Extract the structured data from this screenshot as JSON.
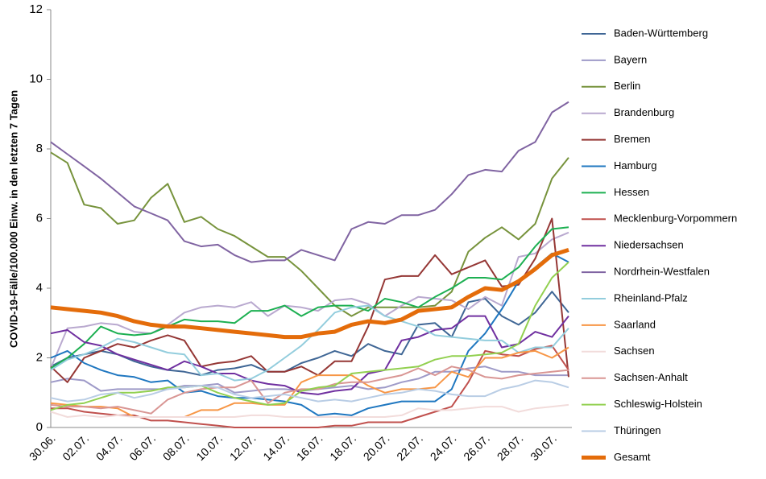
{
  "chart_data": {
    "type": "line",
    "y_label": "COVID-19-Fälle/100.000 Einw. in den letzten 7 Tagen",
    "categories": [
      "30.06.",
      null,
      "02.07.",
      null,
      "04.07.",
      null,
      "06.07.",
      null,
      "08.07.",
      null,
      "10.07.",
      null,
      "12.07.",
      null,
      "14.07.",
      null,
      "16.07.",
      null,
      "18.07.",
      null,
      "20.07.",
      null,
      "22.07.",
      null,
      "24.07.",
      null,
      "26.07.",
      null,
      "28.07.",
      null,
      "30.07.",
      null
    ],
    "ylim": [
      0,
      12
    ],
    "yticks": [
      0,
      2,
      4,
      6,
      8,
      10,
      12
    ],
    "grid": false,
    "legend": "right",
    "series": [
      {
        "name": "Baden-Württemberg",
        "color": "#3f6695",
        "values": [
          1.75,
          2.0,
          2.1,
          2.2,
          2.1,
          1.9,
          1.75,
          1.65,
          1.6,
          1.5,
          1.65,
          1.7,
          1.8,
          1.6,
          1.6,
          1.85,
          2.0,
          2.2,
          2.05,
          2.4,
          2.2,
          2.1,
          2.95,
          3.0,
          2.6,
          3.6,
          3.7,
          3.2,
          2.95,
          3.3,
          3.9,
          3.3
        ]
      },
      {
        "name": "Bayern",
        "color": "#9e9ac8",
        "values": [
          1.3,
          1.4,
          1.35,
          1.05,
          1.1,
          1.1,
          1.1,
          1.1,
          1.2,
          1.2,
          1.25,
          1.0,
          1.05,
          1.1,
          1.1,
          1.05,
          1.1,
          1.15,
          1.2,
          1.1,
          1.15,
          1.3,
          1.4,
          1.6,
          1.6,
          1.7,
          1.75,
          1.6,
          1.6,
          1.5,
          1.5,
          1.5
        ]
      },
      {
        "name": "Berlin",
        "color": "#77933c",
        "values": [
          7.9,
          7.6,
          6.4,
          6.3,
          5.85,
          5.95,
          6.6,
          7.0,
          5.9,
          6.05,
          5.7,
          5.5,
          5.2,
          4.9,
          4.9,
          4.5,
          4.0,
          3.5,
          3.2,
          3.45,
          3.45,
          3.45,
          3.45,
          3.5,
          3.9,
          5.05,
          5.45,
          5.75,
          5.4,
          5.85,
          7.15,
          7.75
        ]
      },
      {
        "name": "Brandenburg",
        "color": "#b9a9cf",
        "values": [
          1.7,
          2.85,
          2.9,
          3.0,
          2.95,
          2.75,
          2.7,
          2.95,
          3.3,
          3.45,
          3.5,
          3.45,
          3.6,
          3.2,
          3.5,
          3.45,
          3.35,
          3.65,
          3.7,
          3.55,
          3.2,
          3.5,
          3.75,
          3.7,
          3.65,
          3.4,
          3.75,
          3.5,
          4.9,
          5.0,
          5.4,
          5.6
        ]
      },
      {
        "name": "Bremen",
        "color": "#953735",
        "values": [
          1.75,
          1.3,
          2.0,
          2.2,
          2.4,
          2.3,
          2.5,
          2.65,
          2.5,
          1.75,
          1.85,
          1.9,
          2.05,
          1.6,
          1.6,
          1.75,
          1.5,
          1.9,
          1.9,
          2.9,
          4.25,
          4.35,
          4.35,
          4.95,
          4.4,
          4.6,
          4.8,
          4.05,
          4.1,
          4.85,
          6.0,
          1.45
        ]
      },
      {
        "name": "Hamburg",
        "color": "#1f77c0",
        "values": [
          2.0,
          2.2,
          1.85,
          1.65,
          1.5,
          1.45,
          1.3,
          1.35,
          1.0,
          1.05,
          0.9,
          0.85,
          0.85,
          0.8,
          0.75,
          0.65,
          0.35,
          0.4,
          0.35,
          0.55,
          0.65,
          0.75,
          0.75,
          0.75,
          1.1,
          2.2,
          2.7,
          3.4,
          4.2,
          4.6,
          5.0,
          4.75
        ]
      },
      {
        "name": "Hessen",
        "color": "#1db052",
        "values": [
          1.7,
          2.0,
          2.4,
          2.9,
          2.7,
          2.65,
          2.7,
          2.9,
          3.1,
          3.05,
          3.05,
          3.0,
          3.35,
          3.35,
          3.5,
          3.2,
          3.45,
          3.5,
          3.5,
          3.35,
          3.7,
          3.6,
          3.45,
          3.75,
          4.0,
          4.3,
          4.3,
          4.25,
          4.6,
          5.2,
          5.7,
          5.75
        ]
      },
      {
        "name": "Mecklenburg-Vorpommern",
        "color": "#c0504d",
        "values": [
          0.55,
          0.55,
          0.45,
          0.4,
          0.35,
          0.35,
          0.2,
          0.2,
          0.15,
          0.1,
          0.05,
          0.0,
          0.0,
          0.0,
          0.0,
          0.0,
          0.0,
          0.05,
          0.05,
          0.15,
          0.15,
          0.15,
          0.3,
          0.45,
          0.6,
          1.3,
          2.2,
          2.1,
          2.05,
          2.25,
          2.35,
          1.65
        ]
      },
      {
        "name": "Niedersachsen",
        "color": "#7030a0",
        "values": [
          2.7,
          2.8,
          2.45,
          2.35,
          2.1,
          1.95,
          1.8,
          1.65,
          1.9,
          1.75,
          1.55,
          1.55,
          1.35,
          1.25,
          1.2,
          1.0,
          0.95,
          1.05,
          1.1,
          1.55,
          1.65,
          2.5,
          2.6,
          2.8,
          2.85,
          3.2,
          3.2,
          2.3,
          2.4,
          2.75,
          2.6,
          3.2
        ]
      },
      {
        "name": "Nordrhein-Westfalen",
        "color": "#8064a2",
        "values": [
          8.2,
          7.85,
          7.5,
          7.15,
          6.75,
          6.35,
          6.15,
          5.95,
          5.35,
          5.2,
          5.25,
          4.95,
          4.75,
          4.8,
          4.8,
          5.1,
          4.95,
          4.8,
          5.7,
          5.9,
          5.85,
          6.1,
          6.1,
          6.25,
          6.7,
          7.25,
          7.4,
          7.35,
          7.95,
          8.2,
          9.05,
          9.35
        ]
      },
      {
        "name": "Rheinland-Pfalz",
        "color": "#93cddd",
        "values": [
          1.65,
          1.95,
          2.1,
          2.3,
          2.55,
          2.45,
          2.3,
          2.15,
          2.1,
          1.5,
          1.55,
          1.35,
          1.4,
          1.65,
          2.0,
          2.35,
          2.8,
          3.3,
          3.45,
          3.5,
          3.2,
          3.05,
          2.9,
          2.65,
          2.6,
          2.55,
          2.5,
          2.5,
          2.15,
          2.3,
          2.3,
          2.85
        ]
      },
      {
        "name": "Saarland",
        "color": "#f79646",
        "values": [
          0.7,
          0.65,
          0.6,
          0.6,
          0.55,
          0.3,
          0.3,
          0.3,
          0.3,
          0.5,
          0.5,
          0.7,
          0.7,
          0.65,
          0.65,
          1.3,
          1.5,
          1.5,
          1.5,
          1.2,
          1.0,
          1.1,
          1.1,
          1.15,
          1.6,
          1.45,
          2.0,
          2.0,
          2.15,
          2.2,
          2.0,
          2.3
        ]
      },
      {
        "name": "Sachsen",
        "color": "#f2dcdb",
        "values": [
          0.45,
          0.3,
          0.35,
          0.3,
          0.35,
          0.3,
          0.3,
          0.3,
          0.3,
          0.3,
          0.3,
          0.3,
          0.35,
          0.35,
          0.3,
          0.3,
          0.3,
          0.3,
          0.3,
          0.3,
          0.3,
          0.35,
          0.55,
          0.5,
          0.5,
          0.55,
          0.6,
          0.6,
          0.45,
          0.55,
          0.6,
          0.65
        ]
      },
      {
        "name": "Sachsen-Anhalt",
        "color": "#d99694",
        "values": [
          0.65,
          0.6,
          0.6,
          0.55,
          0.6,
          0.5,
          0.4,
          0.8,
          1.0,
          1.1,
          1.15,
          1.15,
          1.35,
          0.7,
          1.0,
          1.1,
          1.1,
          1.25,
          1.3,
          1.3,
          1.4,
          1.5,
          1.7,
          1.5,
          1.75,
          1.65,
          1.45,
          1.4,
          1.5,
          1.55,
          1.6,
          1.65
        ]
      },
      {
        "name": "Schleswig-Holstein",
        "color": "#92d050",
        "values": [
          0.5,
          0.65,
          0.7,
          0.85,
          1.0,
          1.0,
          1.05,
          1.15,
          1.15,
          1.2,
          1.0,
          0.85,
          0.75,
          0.65,
          0.7,
          1.05,
          1.15,
          1.2,
          1.55,
          1.6,
          1.65,
          1.7,
          1.75,
          1.95,
          2.05,
          2.05,
          2.1,
          2.15,
          2.4,
          3.5,
          4.3,
          4.75
        ]
      },
      {
        "name": "Thüringen",
        "color": "#b9cde5",
        "values": [
          0.85,
          0.75,
          0.8,
          0.95,
          1.0,
          0.85,
          0.95,
          1.1,
          1.15,
          1.2,
          1.15,
          0.95,
          0.85,
          0.9,
          0.95,
          0.85,
          0.75,
          0.8,
          0.75,
          0.85,
          0.95,
          1.0,
          1.1,
          1.05,
          0.95,
          0.9,
          0.9,
          1.1,
          1.2,
          1.35,
          1.3,
          1.15
        ]
      },
      {
        "name": "Gesamt",
        "color": "#e46c0a",
        "values": [
          3.45,
          3.4,
          3.35,
          3.3,
          3.2,
          3.05,
          2.95,
          2.9,
          2.9,
          2.85,
          2.8,
          2.75,
          2.7,
          2.65,
          2.6,
          2.6,
          2.7,
          2.75,
          2.95,
          3.05,
          3.0,
          3.1,
          3.35,
          3.4,
          3.45,
          3.75,
          4.0,
          3.95,
          4.2,
          4.55,
          4.95,
          5.1
        ]
      }
    ]
  }
}
